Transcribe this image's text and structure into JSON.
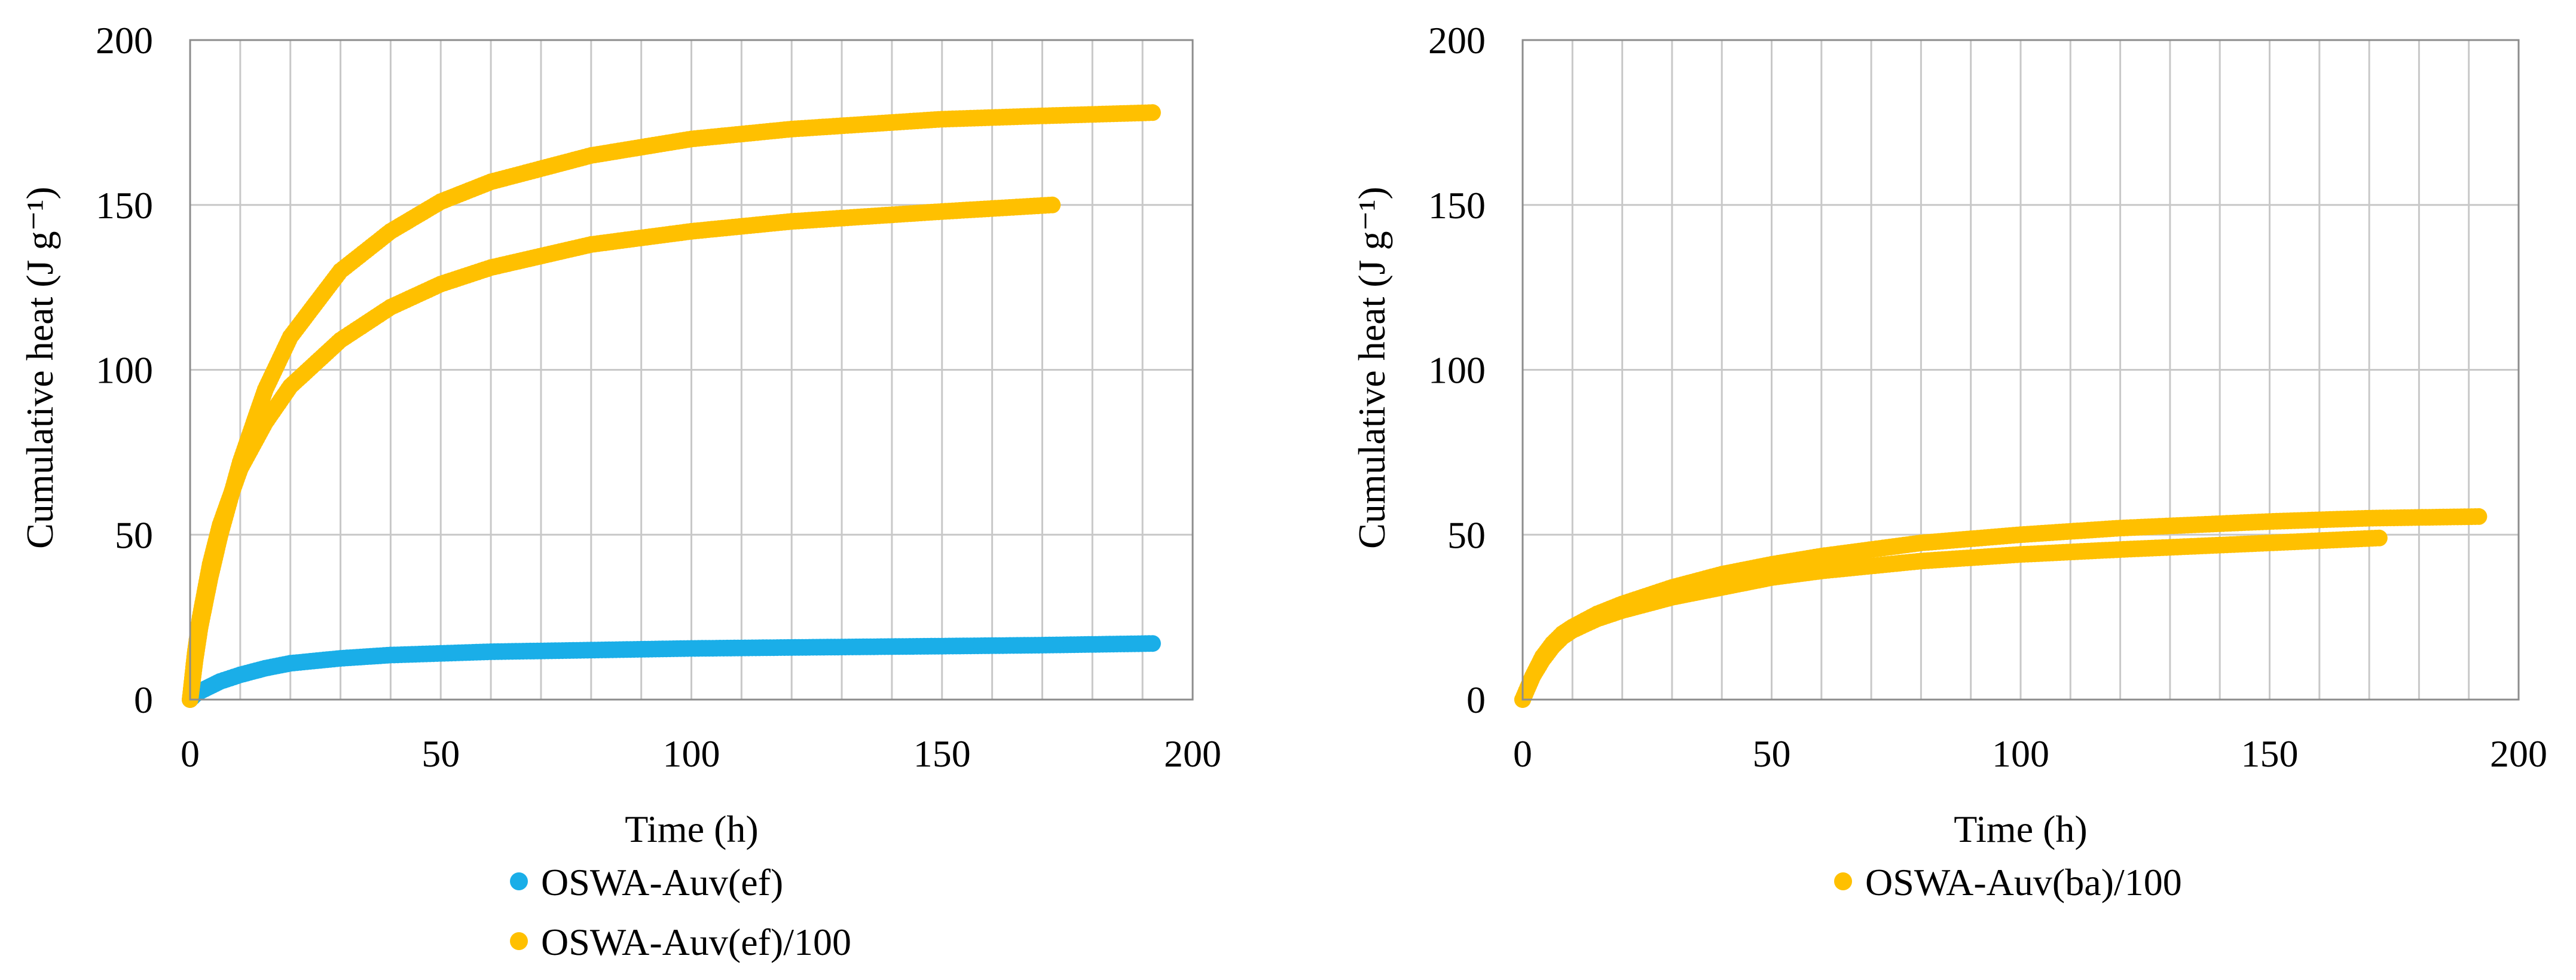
{
  "chart_data": [
    {
      "type": "scatter",
      "title": "",
      "xlabel": "Time (h)",
      "ylabel": "Cumulative heat (J g⁻¹)",
      "xlim": [
        0,
        200
      ],
      "ylim": [
        0,
        200
      ],
      "xticks": [
        0,
        50,
        100,
        150,
        200
      ],
      "yticks": [
        0,
        50,
        100,
        150,
        200
      ],
      "xtick_labels": [
        "0",
        "50",
        "100",
        "150",
        "200"
      ],
      "ytick_labels": [
        "0",
        "50",
        "100",
        "150",
        "200"
      ],
      "x_grid_step": 10,
      "grid": true,
      "legend": {
        "position": "bottom",
        "entries": [
          "OSWA-Auv(ef)",
          "OSWA-Auv(ef)/100"
        ]
      },
      "series": [
        {
          "name": "OSWA-Auv(ef)",
          "color": "#1AAEE8",
          "x": [
            0,
            1,
            2,
            4,
            6,
            10,
            15,
            20,
            30,
            40,
            50,
            60,
            80,
            100,
            120,
            150,
            170,
            192
          ],
          "y": [
            0,
            1.5,
            2.5,
            4,
            5.5,
            7.5,
            9.5,
            11,
            12.5,
            13.5,
            14,
            14.5,
            15,
            15.5,
            15.8,
            16.2,
            16.5,
            17
          ]
        },
        {
          "name": "OSWA-Auv(ef)/100",
          "color": "#FFC000",
          "x": [
            0,
            1,
            2,
            4,
            6,
            10,
            15,
            20,
            30,
            40,
            50,
            60,
            80,
            100,
            120,
            150,
            170,
            192
          ],
          "y": [
            0,
            12,
            22,
            37,
            50,
            72,
            94,
            110,
            130,
            142,
            151,
            157,
            165,
            170,
            173,
            176,
            177,
            178
          ]
        },
        {
          "name": "OSWA-Auv(ef)/100",
          "color": "#FFC000",
          "x": [
            0,
            1,
            2,
            4,
            6,
            10,
            15,
            20,
            30,
            40,
            50,
            60,
            80,
            100,
            120,
            150,
            172
          ],
          "y": [
            0,
            14,
            25,
            41,
            53,
            70,
            84,
            95,
            109,
            119,
            126,
            131,
            138,
            142,
            145,
            148,
            150
          ]
        }
      ]
    },
    {
      "type": "scatter",
      "title": "",
      "xlabel": "Time (h)",
      "ylabel": "Cumulative heat (J g⁻¹)",
      "xlim": [
        0,
        200
      ],
      "ylim": [
        0,
        200
      ],
      "xticks": [
        0,
        50,
        100,
        150,
        200
      ],
      "yticks": [
        0,
        50,
        100,
        150,
        200
      ],
      "xtick_labels": [
        "0",
        "50",
        "100",
        "150",
        "200"
      ],
      "ytick_labels": [
        "0",
        "50",
        "100",
        "150",
        "200"
      ],
      "x_grid_step": 10,
      "grid": true,
      "legend": {
        "position": "bottom",
        "entries": [
          "OSWA-Auv(ba)/100"
        ]
      },
      "series": [
        {
          "name": "OSWA-Auv(ba)/100",
          "color": "#FFC000",
          "x": [
            0,
            1,
            2,
            4,
            6,
            8,
            10,
            15,
            20,
            30,
            40,
            50,
            60,
            80,
            100,
            120,
            150,
            170,
            192
          ],
          "y": [
            0,
            3.5,
            7,
            13,
            17,
            20,
            22,
            26,
            29,
            34,
            38,
            41,
            43.5,
            47.5,
            50,
            52,
            54,
            55,
            55.5
          ]
        },
        {
          "name": "OSWA-Auv(ba)/100",
          "color": "#FFC000",
          "x": [
            0,
            1,
            2,
            4,
            6,
            8,
            10,
            15,
            20,
            30,
            40,
            50,
            60,
            80,
            100,
            120,
            150,
            172
          ],
          "y": [
            0,
            3.5,
            7,
            12,
            16,
            19,
            21,
            24.5,
            27,
            31,
            34,
            37,
            39,
            42,
            44,
            45.5,
            47.5,
            49
          ]
        }
      ]
    }
  ]
}
